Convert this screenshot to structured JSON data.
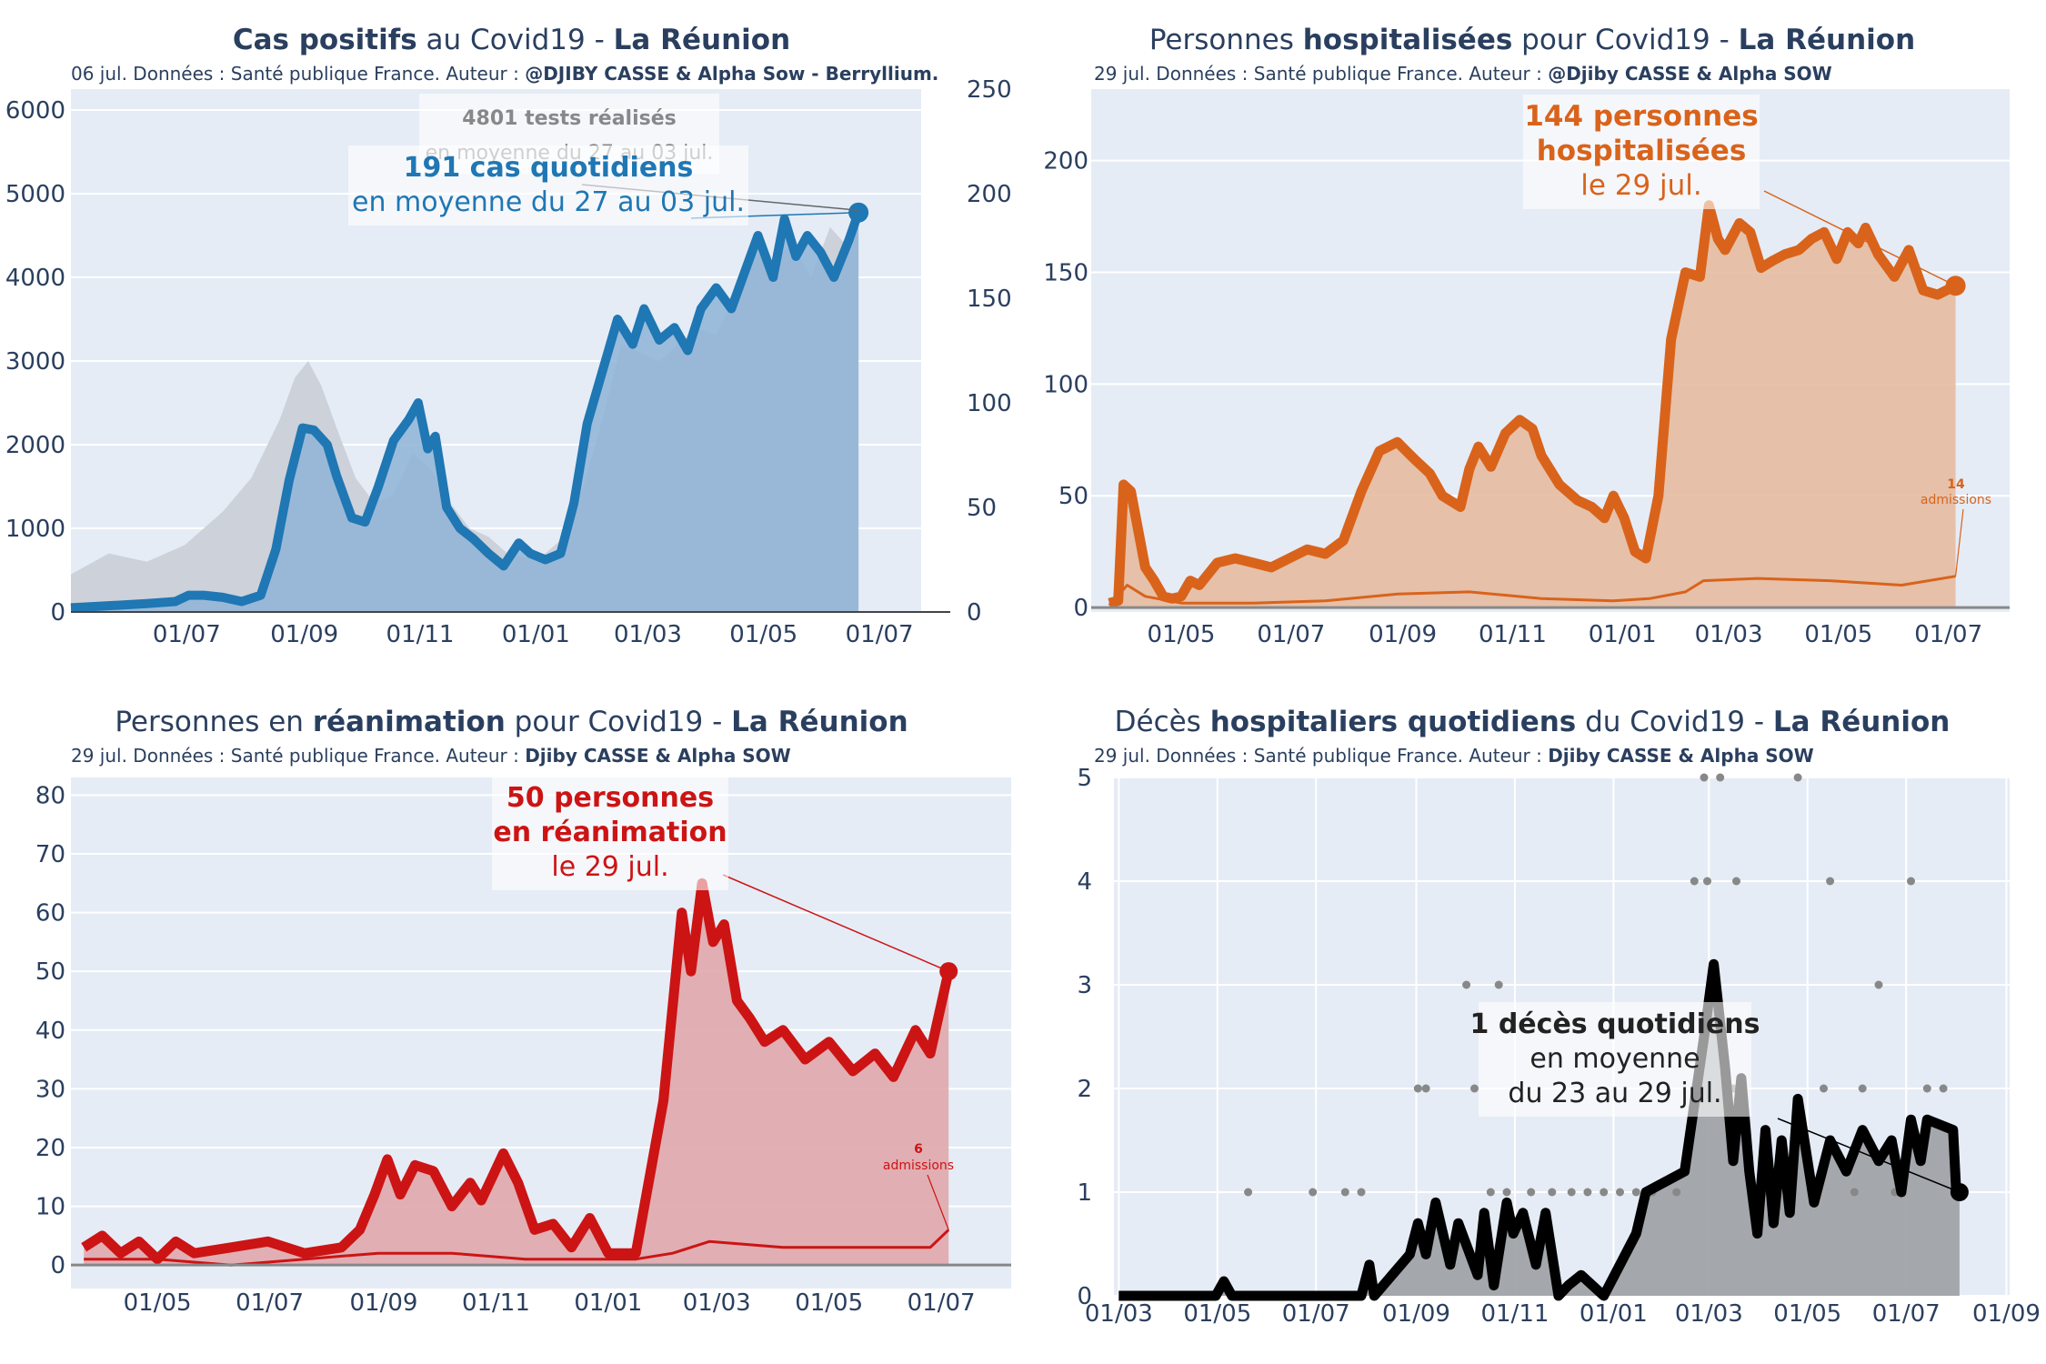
{
  "colors": {
    "plot_bg": "#e5ecf6",
    "grid": "#ffffff",
    "tick_text": "#2a3f5f",
    "cases": "#1f77b4",
    "cases_fill": "#8fb4d6",
    "tests_fill": "#cdd1d9",
    "tests_note": "#888888",
    "hosp": "#d9631b",
    "hosp_fill": "#e6bba0",
    "rea": "#cc1414",
    "rea_fill": "#e0a7ac",
    "deaths": "#000000",
    "deaths_fill": "#a0a3a8",
    "deaths_dots": "#888888"
  },
  "panels": {
    "cases": {
      "title_bold1": "Cas positifs",
      "title_mid": " au Covid19 - ",
      "title_bold2": "La Réunion",
      "subtitle_text": "06 jul. Données : Santé publique France. Auteur : ",
      "subtitle_bold": "@DJIBY CASSE & Alpha Sow - Berryllium.",
      "annot_tests_bold": "4801 tests réalisés",
      "annot_tests_text": "en moyenne du 27 au 03 jul.",
      "annot_cases_bold": "191 cas quotidiens",
      "annot_cases_text": "en moyenne du 27 au 03 jul."
    },
    "hosp": {
      "title_text1": "Personnes ",
      "title_bold1": "hospitalisées",
      "title_mid": " pour Covid19 - ",
      "title_bold2": "La Réunion",
      "subtitle_text": "29 jul. Données : Santé publique France. Auteur : ",
      "subtitle_bold": "@Djiby CASSE & Alpha SOW",
      "annot_line1": "144 personnes",
      "annot_line2": "hospitalisées",
      "annot_line3": "le 29 jul.",
      "adm_value": "14",
      "adm_label": "admissions"
    },
    "rea": {
      "title_text1": "Personnes en ",
      "title_bold1": "réanimation",
      "title_mid": " pour Covid19 - ",
      "title_bold2": "La Réunion",
      "subtitle_text": "29 jul. Données : Santé publique France. Auteur : ",
      "subtitle_bold": "Djiby CASSE & Alpha SOW",
      "annot_line1": "50 personnes",
      "annot_line2": "en réanimation",
      "annot_line3": "le 29 jul.",
      "adm_value": "6",
      "adm_label": "admissions"
    },
    "deaths": {
      "title_text1": "Décès ",
      "title_bold1": "hospitaliers quotidiens",
      "title_mid": " du Covid19 - ",
      "title_bold2": "La Réunion",
      "subtitle_text": "29 jul. Données : Santé publique France. Auteur : ",
      "subtitle_bold": "Djiby CASSE & Alpha SOW",
      "annot_line1": "1 décès quotidiens",
      "annot_line2": "en moyenne",
      "annot_line3": "du 23 au 29 jul."
    }
  },
  "chart_data": [
    {
      "id": "cases",
      "type": "area",
      "xlim": [
        0,
        415
      ],
      "xticks": [
        {
          "t": 61,
          "label": "01/07"
        },
        {
          "t": 123,
          "label": "01/09"
        },
        {
          "t": 184,
          "label": "01/11"
        },
        {
          "t": 245,
          "label": "01/01"
        },
        {
          "t": 304,
          "label": "01/03"
        },
        {
          "t": 365,
          "label": "01/05"
        },
        {
          "t": 426,
          "label": "01/07"
        }
      ],
      "y_left_ticks": [
        0,
        1000,
        2000,
        3000,
        4000,
        5000,
        6000
      ],
      "y_left_range": [
        0,
        6250
      ],
      "y_right_ticks": [
        0,
        50,
        100,
        150,
        200,
        250
      ],
      "y_right_range": [
        0,
        250
      ],
      "cases_series": {
        "name": "cas quotidiens (moyenne)",
        "x": [
          0,
          20,
          40,
          55,
          62,
          70,
          80,
          90,
          100,
          108,
          115,
          122,
          128,
          135,
          140,
          148,
          155,
          162,
          170,
          178,
          183,
          188,
          192,
          198,
          205,
          212,
          220,
          228,
          236,
          242,
          250,
          258,
          265,
          272,
          280,
          288,
          296,
          302,
          310,
          318,
          325,
          332,
          340,
          348,
          356,
          362,
          370,
          376,
          382,
          388,
          395,
          402,
          410,
          415
        ],
        "y": [
          2,
          3,
          4,
          5,
          8,
          8,
          7,
          5,
          8,
          30,
          63,
          88,
          87,
          80,
          65,
          45,
          43,
          60,
          82,
          92,
          100,
          78,
          84,
          50,
          40,
          35,
          28,
          22,
          33,
          28,
          25,
          28,
          52,
          90,
          115,
          140,
          128,
          145,
          130,
          136,
          125,
          145,
          155,
          145,
          165,
          180,
          160,
          188,
          170,
          180,
          172,
          160,
          178,
          191
        ]
      },
      "tests_series": {
        "name": "tests réalisés (moyenne)",
        "x": [
          0,
          20,
          40,
          60,
          80,
          95,
          110,
          118,
          125,
          132,
          140,
          150,
          160,
          170,
          180,
          190,
          200,
          210,
          220,
          230,
          240,
          250,
          260,
          270,
          280,
          290,
          300,
          310,
          320,
          330,
          340,
          350,
          360,
          370,
          380,
          390,
          400,
          408,
          412,
          415
        ],
        "y": [
          450,
          700,
          600,
          800,
          1200,
          1600,
          2300,
          2800,
          3000,
          2700,
          2200,
          1600,
          1300,
          1400,
          1900,
          1700,
          1300,
          1000,
          900,
          700,
          650,
          700,
          900,
          1500,
          2300,
          3200,
          3100,
          3000,
          3200,
          3400,
          3300,
          3800,
          4300,
          4200,
          4400,
          4000,
          4600,
          4400,
          4500,
          4801
        ]
      }
    },
    {
      "id": "hosp",
      "type": "area",
      "xlim": [
        0,
        470
      ],
      "xticks": [
        {
          "t": 40,
          "label": "01/05"
        },
        {
          "t": 101,
          "label": "01/07"
        },
        {
          "t": 163,
          "label": "01/09"
        },
        {
          "t": 224,
          "label": "01/11"
        },
        {
          "t": 285,
          "label": "01/01"
        },
        {
          "t": 344,
          "label": "01/03"
        },
        {
          "t": 405,
          "label": "01/05"
        },
        {
          "t": 466,
          "label": "01/07"
        }
      ],
      "yticks": [
        0,
        50,
        100,
        150,
        200
      ],
      "ylim": [
        -2,
        232
      ],
      "hosp_series": {
        "name": "personnes hospitalisées",
        "x": [
          0,
          5,
          8,
          12,
          16,
          20,
          25,
          30,
          35,
          40,
          45,
          50,
          60,
          70,
          80,
          90,
          100,
          110,
          120,
          130,
          140,
          150,
          160,
          165,
          170,
          178,
          185,
          195,
          200,
          205,
          212,
          220,
          228,
          235,
          240,
          250,
          260,
          268,
          275,
          280,
          286,
          292,
          298,
          305,
          312,
          320,
          328,
          333,
          338,
          342,
          350,
          356,
          362,
          368,
          375,
          383,
          390,
          397,
          404,
          410,
          416,
          420,
          427,
          436,
          444,
          452,
          460,
          470
        ],
        "y": [
          2,
          3,
          55,
          52,
          35,
          18,
          12,
          5,
          4,
          5,
          12,
          10,
          20,
          22,
          20,
          18,
          22,
          26,
          24,
          30,
          52,
          70,
          74,
          70,
          66,
          60,
          50,
          45,
          62,
          72,
          63,
          78,
          84,
          80,
          68,
          55,
          48,
          45,
          40,
          50,
          40,
          25,
          22,
          50,
          120,
          150,
          148,
          180,
          165,
          160,
          172,
          168,
          152,
          155,
          158,
          160,
          165,
          168,
          156,
          168,
          163,
          170,
          158,
          148,
          160,
          142,
          140,
          144
        ]
      },
      "admissions_series": {
        "name": "admissions",
        "x": [
          0,
          10,
          20,
          40,
          80,
          120,
          160,
          200,
          240,
          280,
          300,
          320,
          330,
          360,
          400,
          440,
          470
        ],
        "y": [
          1,
          10,
          5,
          2,
          2,
          3,
          6,
          7,
          4,
          3,
          4,
          7,
          12,
          13,
          12,
          10,
          14
        ]
      }
    },
    {
      "id": "rea",
      "type": "area",
      "xlim": [
        0,
        470
      ],
      "xticks": [
        {
          "t": 40,
          "label": "01/05"
        },
        {
          "t": 101,
          "label": "01/07"
        },
        {
          "t": 163,
          "label": "01/09"
        },
        {
          "t": 224,
          "label": "01/11"
        },
        {
          "t": 285,
          "label": "01/01"
        },
        {
          "t": 344,
          "label": "01/03"
        },
        {
          "t": 405,
          "label": "01/05"
        },
        {
          "t": 466,
          "label": "01/07"
        }
      ],
      "yticks": [
        0,
        10,
        20,
        30,
        40,
        50,
        60,
        70,
        80
      ],
      "ylim": [
        -4,
        83
      ],
      "rea_series": {
        "name": "personnes en réanimation",
        "x": [
          0,
          10,
          20,
          30,
          40,
          50,
          60,
          80,
          100,
          120,
          140,
          150,
          158,
          165,
          172,
          180,
          190,
          200,
          210,
          216,
          222,
          228,
          236,
          245,
          255,
          265,
          275,
          285,
          300,
          315,
          325,
          330,
          336,
          342,
          348,
          355,
          362,
          370,
          380,
          392,
          405,
          418,
          430,
          440,
          452,
          460,
          470
        ],
        "y": [
          3,
          5,
          2,
          4,
          1,
          4,
          2,
          3,
          4,
          2,
          3,
          6,
          12,
          18,
          12,
          17,
          16,
          10,
          14,
          11,
          15,
          19,
          14,
          6,
          7,
          3,
          8,
          2,
          2,
          28,
          60,
          50,
          65,
          55,
          58,
          45,
          42,
          38,
          40,
          35,
          38,
          33,
          36,
          32,
          40,
          36,
          50
        ]
      },
      "admissions_series": {
        "name": "admissions",
        "x": [
          0,
          40,
          80,
          120,
          160,
          200,
          240,
          280,
          300,
          320,
          340,
          380,
          420,
          460,
          470
        ],
        "y": [
          1,
          1,
          0,
          1,
          2,
          2,
          1,
          1,
          1,
          2,
          4,
          3,
          3,
          3,
          6
        ]
      }
    },
    {
      "id": "deaths",
      "type": "area",
      "xlim": [
        0,
        548
      ],
      "xticks": [
        {
          "t": 0,
          "label": "01/03"
        },
        {
          "t": 61,
          "label": "01/05"
        },
        {
          "t": 122,
          "label": "01/07"
        },
        {
          "t": 184,
          "label": "01/09"
        },
        {
          "t": 245,
          "label": "01/11"
        },
        {
          "t": 306,
          "label": "01/01"
        },
        {
          "t": 365,
          "label": "01/03"
        },
        {
          "t": 426,
          "label": "01/05"
        },
        {
          "t": 487,
          "label": "01/07"
        },
        {
          "t": 549,
          "label": "01/09"
        }
      ],
      "yticks": [
        0,
        1,
        2,
        3,
        4,
        5
      ],
      "ylim": [
        0,
        5
      ],
      "deaths_series": {
        "name": "décès quotidiens (moyenne)",
        "x": [
          0,
          60,
          65,
          70,
          120,
          150,
          155,
          158,
          180,
          185,
          190,
          196,
          205,
          210,
          222,
          226,
          232,
          240,
          244,
          250,
          258,
          264,
          272,
          278,
          286,
          300,
          320,
          326,
          350,
          362,
          368,
          375,
          380,
          385,
          390,
          395,
          400,
          405,
          410,
          415,
          420,
          430,
          440,
          450,
          460,
          470,
          478,
          484,
          490,
          496,
          500,
          516,
          518,
          520
        ],
        "y": [
          0,
          0,
          0.14,
          0,
          0,
          0,
          0.3,
          0,
          0.4,
          0.7,
          0.4,
          0.9,
          0.3,
          0.7,
          0.2,
          0.8,
          0.1,
          0.9,
          0.6,
          0.8,
          0.3,
          0.8,
          0,
          0.1,
          0.2,
          0,
          0.6,
          1,
          1.2,
          2.5,
          3.2,
          2.2,
          1.3,
          2.1,
          1.2,
          0.6,
          1.6,
          0.7,
          1.5,
          0.8,
          1.9,
          0.9,
          1.5,
          1.2,
          1.6,
          1.3,
          1.5,
          1.0,
          1.7,
          1.3,
          1.7,
          1.6,
          1.0,
          1
        ]
      },
      "daily_dots": {
        "name": "décès quotidiens",
        "x": [
          80,
          120,
          140,
          150,
          185,
          190,
          215,
          220,
          230,
          235,
          240,
          255,
          268,
          280,
          290,
          300,
          310,
          320,
          330,
          345,
          356,
          362,
          364,
          372,
          380,
          382,
          400,
          420,
          436,
          440,
          455,
          460,
          470,
          480,
          490,
          500,
          510
        ],
        "y": [
          1,
          1,
          1,
          1,
          2,
          2,
          3,
          2,
          1,
          3,
          1,
          1,
          1,
          1,
          1,
          1,
          1,
          1,
          1,
          1,
          4,
          5,
          4,
          5,
          2,
          4,
          1,
          5,
          2,
          4,
          1,
          2,
          3,
          1,
          4,
          2,
          2
        ]
      }
    }
  ]
}
